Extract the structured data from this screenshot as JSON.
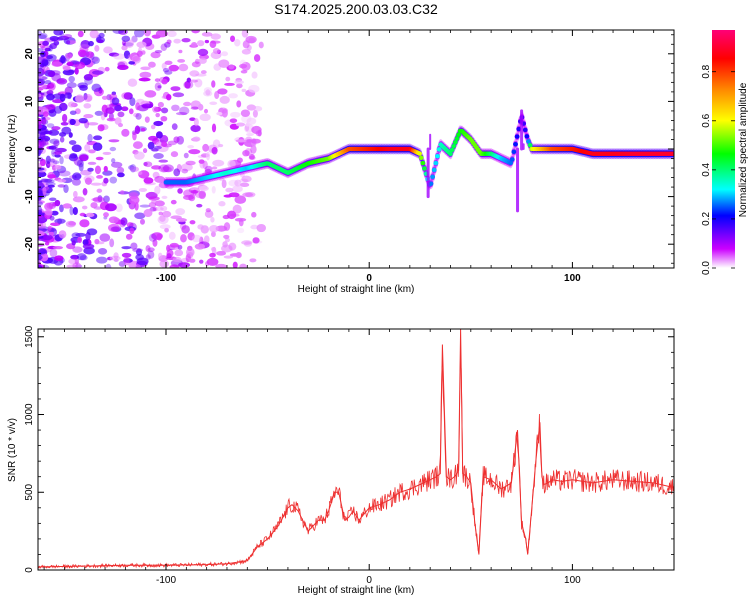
{
  "title": "S174.2025.200.03.03.C32",
  "chart_data": [
    {
      "type": "heatmap",
      "xlabel": "Height of straight line (km)",
      "ylabel": "Frequency (Hz)",
      "xlim": [
        -163,
        150
      ],
      "ylim": [
        -25,
        25
      ],
      "x_ticks": [
        -100,
        0,
        100
      ],
      "y_ticks": [
        -20,
        -10,
        0,
        10,
        20
      ],
      "colorbar": {
        "label": "Normalized spectral amplitude",
        "range": [
          0,
          0.97
        ],
        "ticks": [
          0,
          0.2,
          0.4,
          0.6,
          0.8
        ],
        "tick_labels": [
          "0.0",
          "0.2",
          "0.4",
          "0.6",
          "0.8"
        ],
        "colormap": [
          "#ffffff",
          "#cc00ff",
          "#0000ff",
          "#00ffff",
          "#00ff00",
          "#ffff00",
          "#ff8800",
          "#ff0000",
          "#ff0077"
        ]
      },
      "ridge": {
        "x": [
          -100,
          -90,
          -80,
          -70,
          -60,
          -50,
          -40,
          -30,
          -20,
          -10,
          0,
          10,
          20,
          25,
          30,
          35,
          40,
          45,
          50,
          55,
          60,
          65,
          70,
          75,
          78,
          80,
          90,
          100,
          110,
          120,
          130,
          150
        ],
        "y": [
          -7,
          -7,
          -6,
          -5,
          -4,
          -3,
          -5,
          -3,
          -2,
          0,
          0,
          0,
          0,
          -1,
          -8,
          1,
          -1,
          4,
          2,
          -1,
          -1,
          -2,
          -3,
          7,
          2,
          0,
          0,
          0,
          -1,
          -1,
          -1,
          -1
        ],
        "amplitude": [
          0.3,
          0.3,
          0.35,
          0.4,
          0.35,
          0.45,
          0.45,
          0.5,
          0.55,
          0.8,
          0.85,
          0.9,
          0.9,
          0.6,
          0.3,
          0.4,
          0.45,
          0.5,
          0.55,
          0.55,
          0.45,
          0.35,
          0.3,
          0.2,
          0.25,
          0.6,
          0.8,
          0.85,
          0.9,
          0.9,
          0.92,
          0.92
        ]
      }
    },
    {
      "type": "line",
      "xlabel": "Height of straight line (km)",
      "ylabel": "SNR (10 * v/v)",
      "xlim": [
        -163,
        150
      ],
      "ylim": [
        0,
        1550
      ],
      "x_ticks": [
        -100,
        0,
        100
      ],
      "y_ticks": [
        0,
        500,
        1000,
        1500
      ],
      "series": [
        {
          "color": "#ee3030",
          "x": [
            -163,
            -140,
            -120,
            -100,
            -80,
            -70,
            -60,
            -55,
            -50,
            -45,
            -42,
            -40,
            -38,
            -35,
            -32,
            -30,
            -25,
            -22,
            -20,
            -17,
            -15,
            -12,
            -10,
            -8,
            -5,
            0,
            5,
            10,
            15,
            20,
            25,
            30,
            33,
            35,
            36,
            38,
            40,
            42,
            44,
            45,
            46,
            48,
            50,
            52,
            54,
            56,
            60,
            65,
            70,
            73,
            75,
            77,
            78,
            80,
            82,
            84,
            85,
            86,
            88,
            90,
            95,
            100,
            110,
            120,
            130,
            140,
            150
          ],
          "y": [
            20,
            25,
            30,
            30,
            35,
            40,
            60,
            150,
            200,
            280,
            350,
            400,
            420,
            380,
            300,
            250,
            320,
            320,
            380,
            500,
            500,
            320,
            340,
            380,
            320,
            400,
            420,
            450,
            500,
            520,
            550,
            580,
            600,
            620,
            1450,
            600,
            580,
            600,
            640,
            1550,
            620,
            600,
            560,
            300,
            100,
            600,
            580,
            520,
            560,
            900,
            300,
            200,
            100,
            400,
            700,
            950,
            600,
            550,
            560,
            580,
            570,
            580,
            560,
            580,
            570,
            560,
            530
          ]
        }
      ]
    }
  ]
}
